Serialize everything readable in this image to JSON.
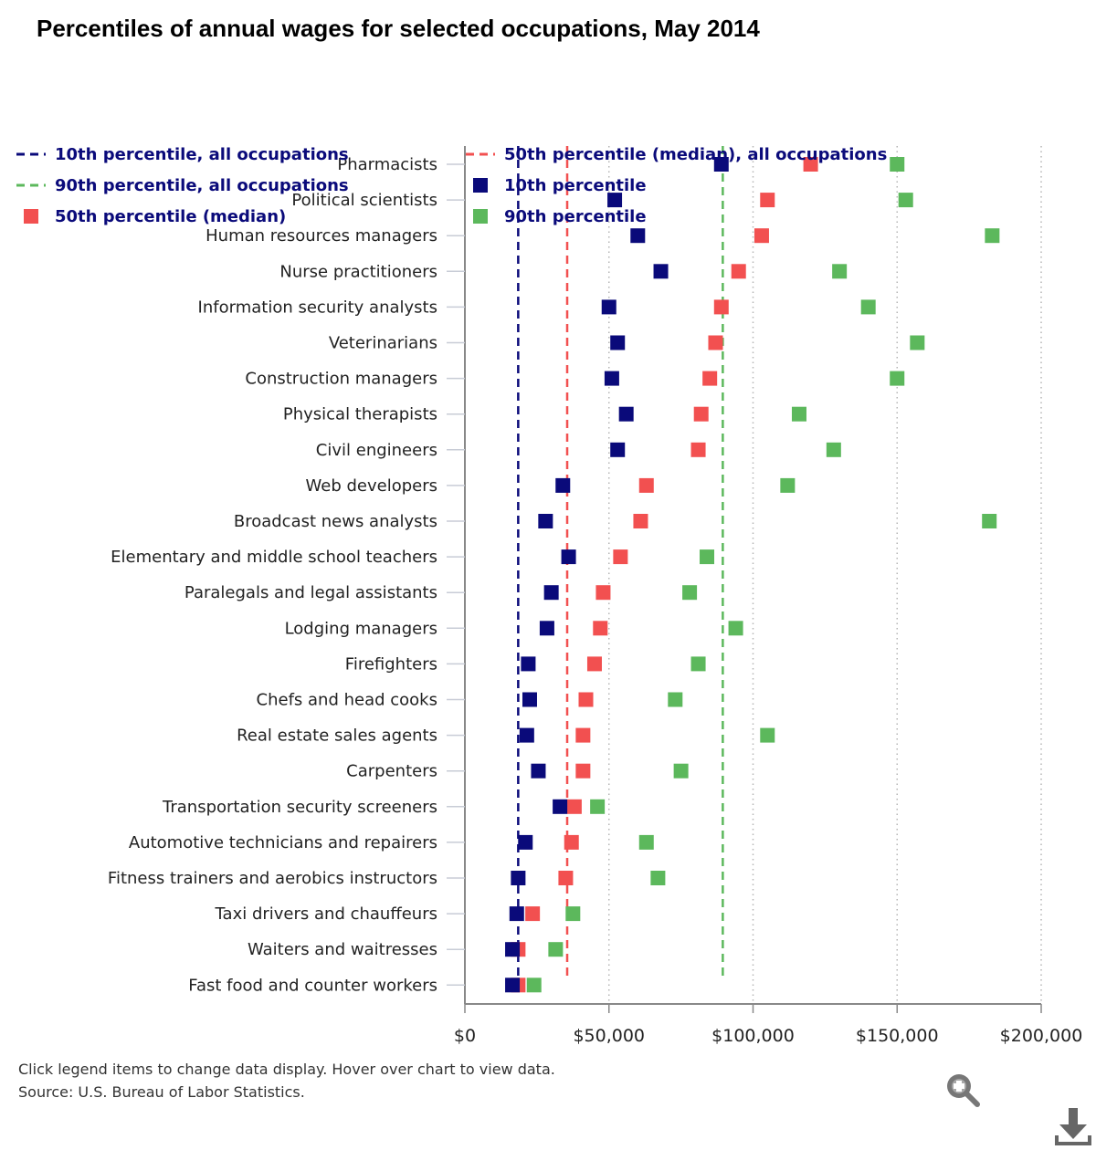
{
  "title": "Percentiles of annual wages for selected occupations, May 2014",
  "footer": {
    "note": "Click legend items to change data display. Hover over chart to view data.",
    "source": "Source: U.S. Bureau of Labor Statistics."
  },
  "icons": {
    "zoom": "zoom-in-icon",
    "download": "download-icon"
  },
  "colors": {
    "p10": "#0a0a7a",
    "p50": "#f25050",
    "p90": "#5cb85c"
  },
  "chart_data": {
    "type": "scatter",
    "orientation": "horizontal",
    "categories": [
      "Pharmacists",
      "Political scientists",
      "Human resources managers",
      "Nurse practitioners",
      "Information security analysts",
      "Veterinarians",
      "Construction managers",
      "Physical therapists",
      "Civil engineers",
      "Web developers",
      "Broadcast news analysts",
      "Elementary and middle school teachers",
      "Paralegals and legal assistants",
      "Lodging managers",
      "Firefighters",
      "Chefs and head cooks",
      "Real estate sales agents",
      "Carpenters",
      "Transportation security screeners",
      "Automotive technicians and repairers",
      "Fitness trainers and aerobics instructors",
      "Taxi drivers and chauffeurs",
      "Waiters and waitresses",
      "Fast food and counter workers"
    ],
    "series": [
      {
        "name": "10th percentile",
        "key": "p10",
        "values": [
          89000,
          52000,
          60000,
          68000,
          50000,
          53000,
          51000,
          56000,
          53000,
          34000,
          28000,
          36000,
          30000,
          28500,
          22000,
          22500,
          21500,
          25500,
          33000,
          21000,
          18500,
          18000,
          16500,
          16500
        ]
      },
      {
        "name": "50th percentile (median)",
        "key": "p50",
        "values": [
          120000,
          105000,
          103000,
          95000,
          89000,
          87000,
          85000,
          82000,
          81000,
          63000,
          61000,
          54000,
          48000,
          47000,
          45000,
          42000,
          41000,
          41000,
          38000,
          37000,
          35000,
          23500,
          18500,
          18500
        ]
      },
      {
        "name": "90th percentile",
        "key": "p90",
        "values": [
          150000,
          153000,
          183000,
          130000,
          140000,
          157000,
          150000,
          116000,
          128000,
          112000,
          182000,
          84000,
          78000,
          94000,
          81000,
          73000,
          105000,
          75000,
          46000,
          63000,
          67000,
          37500,
          31500,
          24000
        ]
      }
    ],
    "reference_lines": [
      {
        "name": "10th percentile, all occupations",
        "key": "p10",
        "value": 18500
      },
      {
        "name": "50th percentile (median), all occupations",
        "key": "p50",
        "value": 35500
      },
      {
        "name": "90th percentile, all occupations",
        "key": "p90",
        "value": 89500
      }
    ],
    "legend_order": [
      {
        "name": "10th percentile, all occupations",
        "key": "p10",
        "kind": "line"
      },
      {
        "name": "50th percentile (median), all occupations",
        "key": "p50",
        "kind": "line"
      },
      {
        "name": "90th percentile, all occupations",
        "key": "p90",
        "kind": "line"
      },
      {
        "name": "10th percentile",
        "key": "p10",
        "kind": "square"
      },
      {
        "name": "50th percentile (median)",
        "key": "p50",
        "kind": "square"
      },
      {
        "name": "90th percentile",
        "key": "p90",
        "kind": "square"
      }
    ],
    "x_axis": {
      "min": 0,
      "max": 200000,
      "ticks": [
        0,
        50000,
        100000,
        150000,
        200000
      ],
      "tick_labels": [
        "$0",
        "$50,000",
        "$100,000",
        "$150,000",
        "$200,000"
      ]
    },
    "grid": "vertical-dotted",
    "legend_position": "top-left"
  }
}
